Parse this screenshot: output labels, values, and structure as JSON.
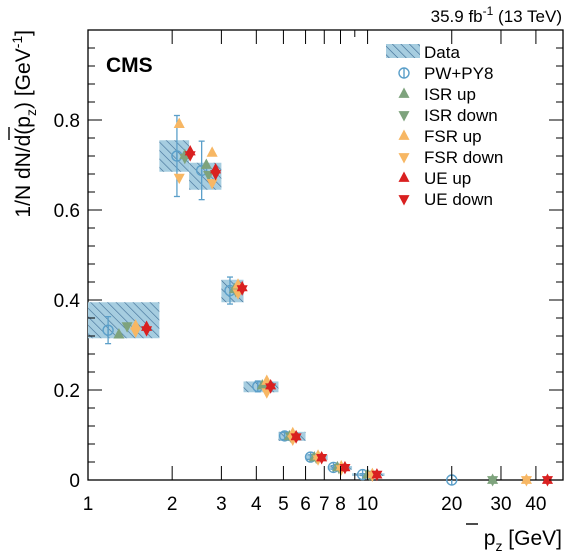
{
  "chart_data": {
    "type": "scatter",
    "experiment_label": "CMS",
    "luminosity_label": "35.9 fb",
    "luminosity_exponent": "-1",
    "energy_label": "(13 TeV)",
    "xlabel": {
      "base": "p",
      "subscript": "z",
      "unit": "[GeV]"
    },
    "ylabel": {
      "main": "1/N dN/d(",
      "base": "p",
      "subscript": "z",
      "close": ")",
      "unit": "[GeV",
      "unit_exponent": "-1",
      "unit_close": "]"
    },
    "xscale": "log",
    "xlim": [
      1,
      50
    ],
    "ylim": [
      0,
      1.0
    ],
    "xticks_major": [
      1,
      2,
      3,
      4,
      5,
      6,
      7,
      8,
      10,
      20,
      30,
      40
    ],
    "xtick_labels": [
      "1",
      "2",
      "3",
      "4",
      "5",
      "6",
      "7",
      "8",
      "10",
      "20",
      "30",
      "40"
    ],
    "yticks_major": [
      0,
      0.2,
      0.4,
      0.6,
      0.8
    ],
    "ytick_labels": [
      "0",
      "0.2",
      "0.4",
      "0.6",
      "0.8"
    ],
    "legend_position": "top-right",
    "bins": [
      {
        "lo": 1.0,
        "hi": 1.8
      },
      {
        "lo": 1.8,
        "hi": 2.3
      },
      {
        "lo": 2.3,
        "hi": 3.0
      },
      {
        "lo": 3.0,
        "hi": 3.6
      },
      {
        "lo": 3.6,
        "hi": 4.8
      },
      {
        "lo": 4.8,
        "hi": 6.0
      },
      {
        "lo": 6.0,
        "hi": 7.2
      },
      {
        "lo": 7.2,
        "hi": 8.8
      },
      {
        "lo": 8.8,
        "hi": 11.5
      },
      {
        "lo": 11.5,
        "hi": 50.0
      }
    ],
    "data": {
      "name": "Data",
      "color": "#a6cde0",
      "values": [
        0.355,
        0.72,
        0.675,
        0.42,
        0.207,
        0.097,
        0.05,
        0.027,
        0.012,
        0.0
      ],
      "box_half_heights": [
        0.04,
        0.035,
        0.03,
        0.025,
        0.012,
        0.01,
        0.006,
        0.004,
        0.003,
        0.0
      ]
    },
    "series": [
      {
        "name": "PW+PY8",
        "marker": "open-circle",
        "color": "#5b9fc9",
        "x": [
          1.18,
          2.08,
          2.55,
          3.22,
          4.05,
          5.05,
          6.25,
          7.55,
          9.6,
          20.0
        ],
        "values": [
          0.333,
          0.72,
          0.688,
          0.421,
          0.208,
          0.098,
          0.051,
          0.028,
          0.012,
          0.0
        ],
        "err": [
          0.03,
          0.09,
          0.065,
          0.03,
          0.012,
          0.008,
          0.005,
          0.004,
          0.002,
          0.0
        ]
      },
      {
        "name": "ISR up",
        "marker": "triangle-up",
        "color": "#7ea37d",
        "x": [
          1.29,
          2.22,
          2.65,
          3.34,
          4.2,
          5.25,
          6.45,
          7.8,
          10.0,
          28.0
        ],
        "values": [
          0.323,
          0.722,
          0.7,
          0.424,
          0.21,
          0.097,
          0.05,
          0.028,
          0.012,
          0.0
        ]
      },
      {
        "name": "ISR down",
        "marker": "triangle-down",
        "color": "#7ea37d",
        "x": [
          1.38,
          2.22,
          2.7,
          3.38,
          4.3,
          5.3,
          6.55,
          7.9,
          10.2,
          28.0
        ],
        "values": [
          0.342,
          0.716,
          0.678,
          0.42,
          0.207,
          0.097,
          0.05,
          0.027,
          0.012,
          0.0
        ]
      },
      {
        "name": "FSR up",
        "marker": "triangle-up",
        "color": "#f7b764",
        "x": [
          1.48,
          2.12,
          2.78,
          3.44,
          4.36,
          5.4,
          6.65,
          8.05,
          10.4,
          37.0
        ],
        "values": [
          0.343,
          0.791,
          0.727,
          0.434,
          0.22,
          0.104,
          0.054,
          0.03,
          0.013,
          0.0
        ]
      },
      {
        "name": "FSR down",
        "marker": "triangle-down",
        "color": "#f7b764",
        "x": [
          1.48,
          2.12,
          2.78,
          3.44,
          4.36,
          5.4,
          6.65,
          8.05,
          10.4,
          37.0
        ],
        "values": [
          0.33,
          0.672,
          0.66,
          0.415,
          0.195,
          0.09,
          0.046,
          0.024,
          0.01,
          0.0
        ]
      },
      {
        "name": "UE up",
        "marker": "triangle-up",
        "color": "#d92020",
        "x": [
          1.62,
          2.32,
          2.86,
          3.56,
          4.5,
          5.55,
          6.85,
          8.3,
          10.8,
          44.0
        ],
        "values": [
          0.34,
          0.73,
          0.69,
          0.428,
          0.21,
          0.097,
          0.05,
          0.028,
          0.012,
          0.0
        ]
      },
      {
        "name": "UE down",
        "marker": "triangle-down",
        "color": "#d92020",
        "x": [
          1.62,
          2.32,
          2.86,
          3.56,
          4.5,
          5.55,
          6.85,
          8.3,
          10.8,
          44.0
        ],
        "values": [
          0.333,
          0.722,
          0.68,
          0.424,
          0.206,
          0.095,
          0.049,
          0.027,
          0.012,
          0.0
        ]
      }
    ]
  }
}
